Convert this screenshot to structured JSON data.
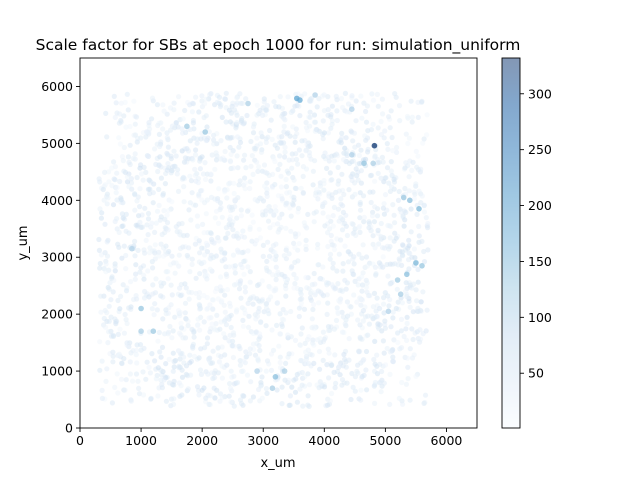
{
  "chart_data": {
    "type": "scatter",
    "title": "Scale factor for SBs at epoch 1000 for run: simulation_uniform",
    "xlabel": "x_um",
    "ylabel": "y_um",
    "xlim": [
      0,
      6500
    ],
    "ylim": [
      0,
      6500
    ],
    "x_ticks": [
      0,
      1000,
      2000,
      3000,
      4000,
      5000,
      6000
    ],
    "x_tick_labels": [
      "0",
      "1000",
      "2000",
      "3000",
      "4000",
      "5000",
      "6000"
    ],
    "y_ticks": [
      0,
      1000,
      2000,
      3000,
      4000,
      5000,
      6000
    ],
    "y_tick_labels": [
      "0",
      "1000",
      "2000",
      "3000",
      "4000",
      "5000",
      "6000"
    ],
    "grid": false,
    "colormap": "Blues",
    "point_alpha": 0.5,
    "colorbar": {
      "range": [
        1,
        332
      ],
      "ticks": [
        50,
        100,
        150,
        200,
        250,
        300
      ],
      "tick_labels": [
        "50",
        "100",
        "150",
        "200",
        "250",
        "300"
      ],
      "color_low": "#f7fbff",
      "color_high": "#08306b"
    },
    "highlighted_points": [
      {
        "x": 3550,
        "y": 5790,
        "value": 180
      },
      {
        "x": 3600,
        "y": 5760,
        "value": 170
      },
      {
        "x": 4820,
        "y": 4960,
        "value": 330
      },
      {
        "x": 4650,
        "y": 4650,
        "value": 130
      },
      {
        "x": 2050,
        "y": 5200,
        "value": 130
      },
      {
        "x": 1750,
        "y": 5300,
        "value": 120
      },
      {
        "x": 2750,
        "y": 5700,
        "value": 110
      },
      {
        "x": 3850,
        "y": 5850,
        "value": 105
      },
      {
        "x": 4450,
        "y": 5600,
        "value": 100
      },
      {
        "x": 5550,
        "y": 3850,
        "value": 150
      },
      {
        "x": 5400,
        "y": 4000,
        "value": 140
      },
      {
        "x": 5300,
        "y": 4050,
        "value": 120
      },
      {
        "x": 5500,
        "y": 2900,
        "value": 150
      },
      {
        "x": 5600,
        "y": 2850,
        "value": 130
      },
      {
        "x": 5350,
        "y": 2700,
        "value": 140
      },
      {
        "x": 5200,
        "y": 2600,
        "value": 120
      },
      {
        "x": 5250,
        "y": 2350,
        "value": 115
      },
      {
        "x": 5050,
        "y": 2050,
        "value": 105
      },
      {
        "x": 1000,
        "y": 2100,
        "value": 130
      },
      {
        "x": 1200,
        "y": 1700,
        "value": 125
      },
      {
        "x": 1000,
        "y": 1700,
        "value": 110
      },
      {
        "x": 850,
        "y": 3150,
        "value": 100
      },
      {
        "x": 3200,
        "y": 900,
        "value": 140
      },
      {
        "x": 3150,
        "y": 700,
        "value": 115
      },
      {
        "x": 3350,
        "y": 1000,
        "value": 110
      },
      {
        "x": 2900,
        "y": 1000,
        "value": 100
      },
      {
        "x": 4800,
        "y": 4650,
        "value": 110
      },
      {
        "x": 4450,
        "y": 4800,
        "value": 105
      }
    ]
  }
}
